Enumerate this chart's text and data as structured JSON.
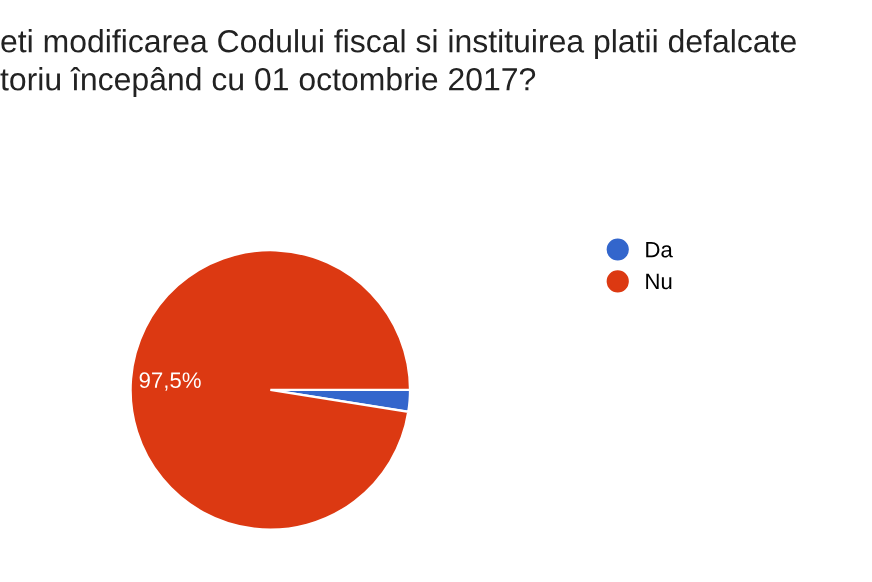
{
  "chart_data": {
    "type": "pie",
    "title": "eti modificarea Codului fiscal si instituirea platii defalcate\ntoriu începând cu 01 octombrie 2017?",
    "categories": [
      "Da",
      "Nu"
    ],
    "values": [
      2.5,
      97.5
    ],
    "colors": [
      "#3366cc",
      "#dc3912"
    ],
    "value_labels": [
      null,
      "97,5%"
    ],
    "legend": "right"
  }
}
